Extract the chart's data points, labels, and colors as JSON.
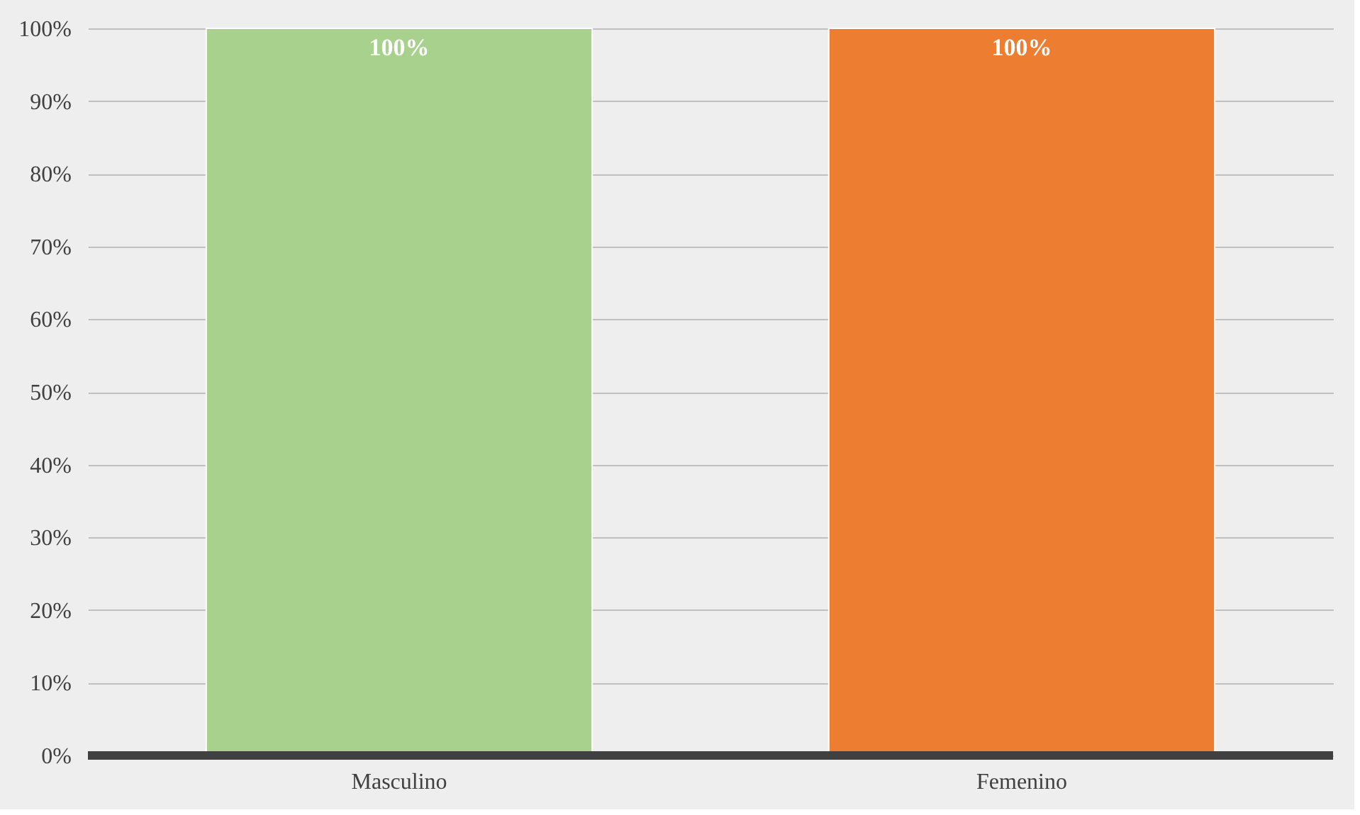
{
  "chart_data": {
    "type": "bar",
    "categories": [
      "Masculino",
      "Femenino"
    ],
    "values": [
      100,
      100
    ],
    "colors": [
      "#a9d18e",
      "#ed7d31"
    ],
    "value_labels": [
      "100%",
      "100%"
    ],
    "ylim": [
      0,
      100
    ],
    "yticks": [
      {
        "value": 0,
        "label": "0%"
      },
      {
        "value": 10,
        "label": "10%"
      },
      {
        "value": 20,
        "label": "20%"
      },
      {
        "value": 30,
        "label": "30%"
      },
      {
        "value": 40,
        "label": "40%"
      },
      {
        "value": 50,
        "label": "50%"
      },
      {
        "value": 60,
        "label": "60%"
      },
      {
        "value": 70,
        "label": "70%"
      },
      {
        "value": 80,
        "label": "80%"
      },
      {
        "value": 90,
        "label": "90%"
      },
      {
        "value": 100,
        "label": "100%"
      }
    ],
    "grid": "y"
  }
}
